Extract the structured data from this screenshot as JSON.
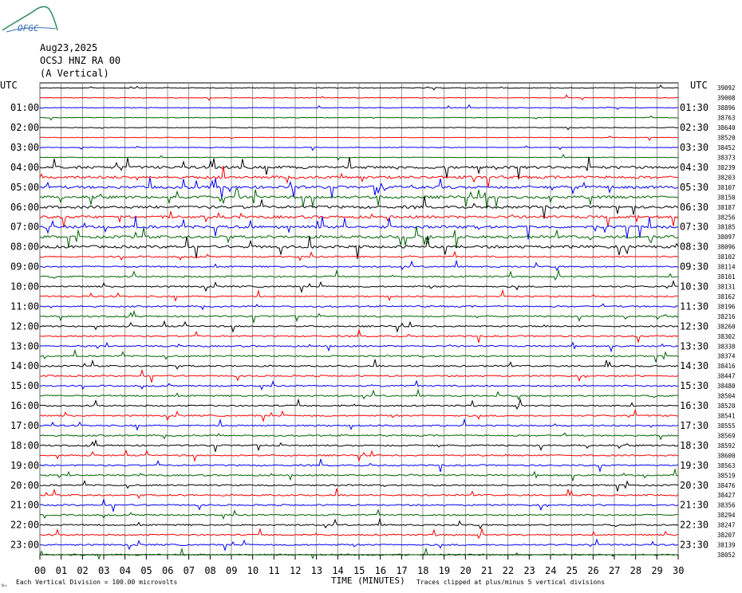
{
  "header": {
    "logo_text": "OFGC",
    "date": "Aug23,2025",
    "station": "OCSJ HNZ RA 00",
    "component": "(A Vertical)"
  },
  "chart_data": {
    "type": "line",
    "title": "",
    "left_axis_label": "UTC",
    "right_axis_label": "UTC",
    "xlabel": "TIME (MINUTES)",
    "x_ticks": [
      "00",
      "01",
      "02",
      "03",
      "04",
      "05",
      "06",
      "07",
      "08",
      "09",
      "10",
      "11",
      "12",
      "13",
      "14",
      "15",
      "16",
      "17",
      "18",
      "19",
      "20",
      "21",
      "22",
      "23",
      "24",
      "25",
      "26",
      "27",
      "28",
      "29",
      "30"
    ],
    "xlim": [
      0,
      30
    ],
    "trace_minutes": 30,
    "trace_count": 48,
    "trace_colors": [
      "#000000",
      "#ff0000",
      "#0000ff",
      "#006400"
    ],
    "left_hour_labels": [
      "01:00",
      "02:00",
      "03:00",
      "04:00",
      "05:00",
      "06:00",
      "07:00",
      "08:00",
      "09:00",
      "10:00",
      "11:00",
      "12:00",
      "13:00",
      "14:00",
      "15:00",
      "16:00",
      "17:00",
      "18:00",
      "19:00",
      "20:00",
      "21:00",
      "22:00",
      "23:00"
    ],
    "right_hour_labels": [
      "01:30",
      "02:30",
      "03:30",
      "04:30",
      "05:30",
      "06:30",
      "07:30",
      "08:30",
      "09:30",
      "10:30",
      "11:30",
      "12:30",
      "13:30",
      "14:30",
      "15:30",
      "16:30",
      "17:30",
      "18:30",
      "19:30",
      "20:30",
      "21:30",
      "22:30",
      "23:30"
    ],
    "trace_offsets": [
      "39092",
      "39008",
      "38896",
      "38763",
      "38640",
      "38520",
      "38452",
      "38373",
      "38239",
      "38203",
      "38107",
      "38150",
      "38187",
      "38256",
      "38185",
      "38097",
      "38096",
      "38102",
      "38114",
      "38101",
      "38131",
      "38162",
      "38196",
      "38216",
      "38260",
      "38302",
      "38338",
      "38374",
      "38416",
      "38447",
      "38480",
      "38504",
      "38520",
      "38541",
      "38555",
      "38569",
      "38592",
      "38600",
      "38563",
      "38519",
      "38476",
      "38427",
      "38356",
      "38294",
      "38247",
      "38207",
      "38139",
      "38052"
    ],
    "grid": true,
    "footer_scale": "Each Vertical Division =  100.00 microvolts",
    "footer_clip": "Traces clipped at plus/minus 5 vertical divisions",
    "corner_mark": "ᴜₛ"
  }
}
